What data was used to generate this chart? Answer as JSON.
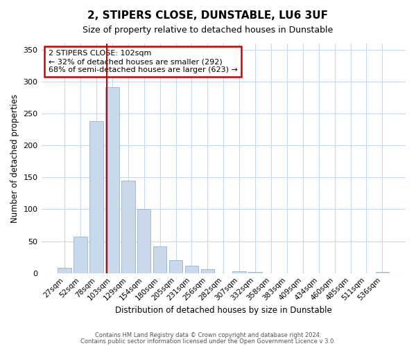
{
  "title": "2, STIPERS CLOSE, DUNSTABLE, LU6 3UF",
  "subtitle": "Size of property relative to detached houses in Dunstable",
  "xlabel": "Distribution of detached houses by size in Dunstable",
  "ylabel": "Number of detached properties",
  "bar_labels": [
    "27sqm",
    "52sqm",
    "78sqm",
    "103sqm",
    "129sqm",
    "154sqm",
    "180sqm",
    "205sqm",
    "231sqm",
    "256sqm",
    "282sqm",
    "307sqm",
    "332sqm",
    "358sqm",
    "383sqm",
    "409sqm",
    "434sqm",
    "460sqm",
    "485sqm",
    "511sqm",
    "536sqm"
  ],
  "bar_values": [
    8,
    57,
    238,
    291,
    145,
    101,
    42,
    20,
    12,
    6,
    0,
    3,
    2,
    0,
    0,
    0,
    0,
    0,
    0,
    0,
    2
  ],
  "bar_color": "#c9d9ec",
  "bar_edgecolor": "#a0b8d8",
  "marker_bar_index": 3,
  "marker_color": "#cc0000",
  "ylim": [
    0,
    360
  ],
  "yticks": [
    0,
    50,
    100,
    150,
    200,
    250,
    300,
    350
  ],
  "annotation_title": "2 STIPERS CLOSE: 102sqm",
  "annotation_line1": "← 32% of detached houses are smaller (292)",
  "annotation_line2": "68% of semi-detached houses are larger (623) →",
  "annotation_box_edgecolor": "#cc0000",
  "footer1": "Contains HM Land Registry data © Crown copyright and database right 2024.",
  "footer2": "Contains public sector information licensed under the Open Government Licence v 3.0."
}
